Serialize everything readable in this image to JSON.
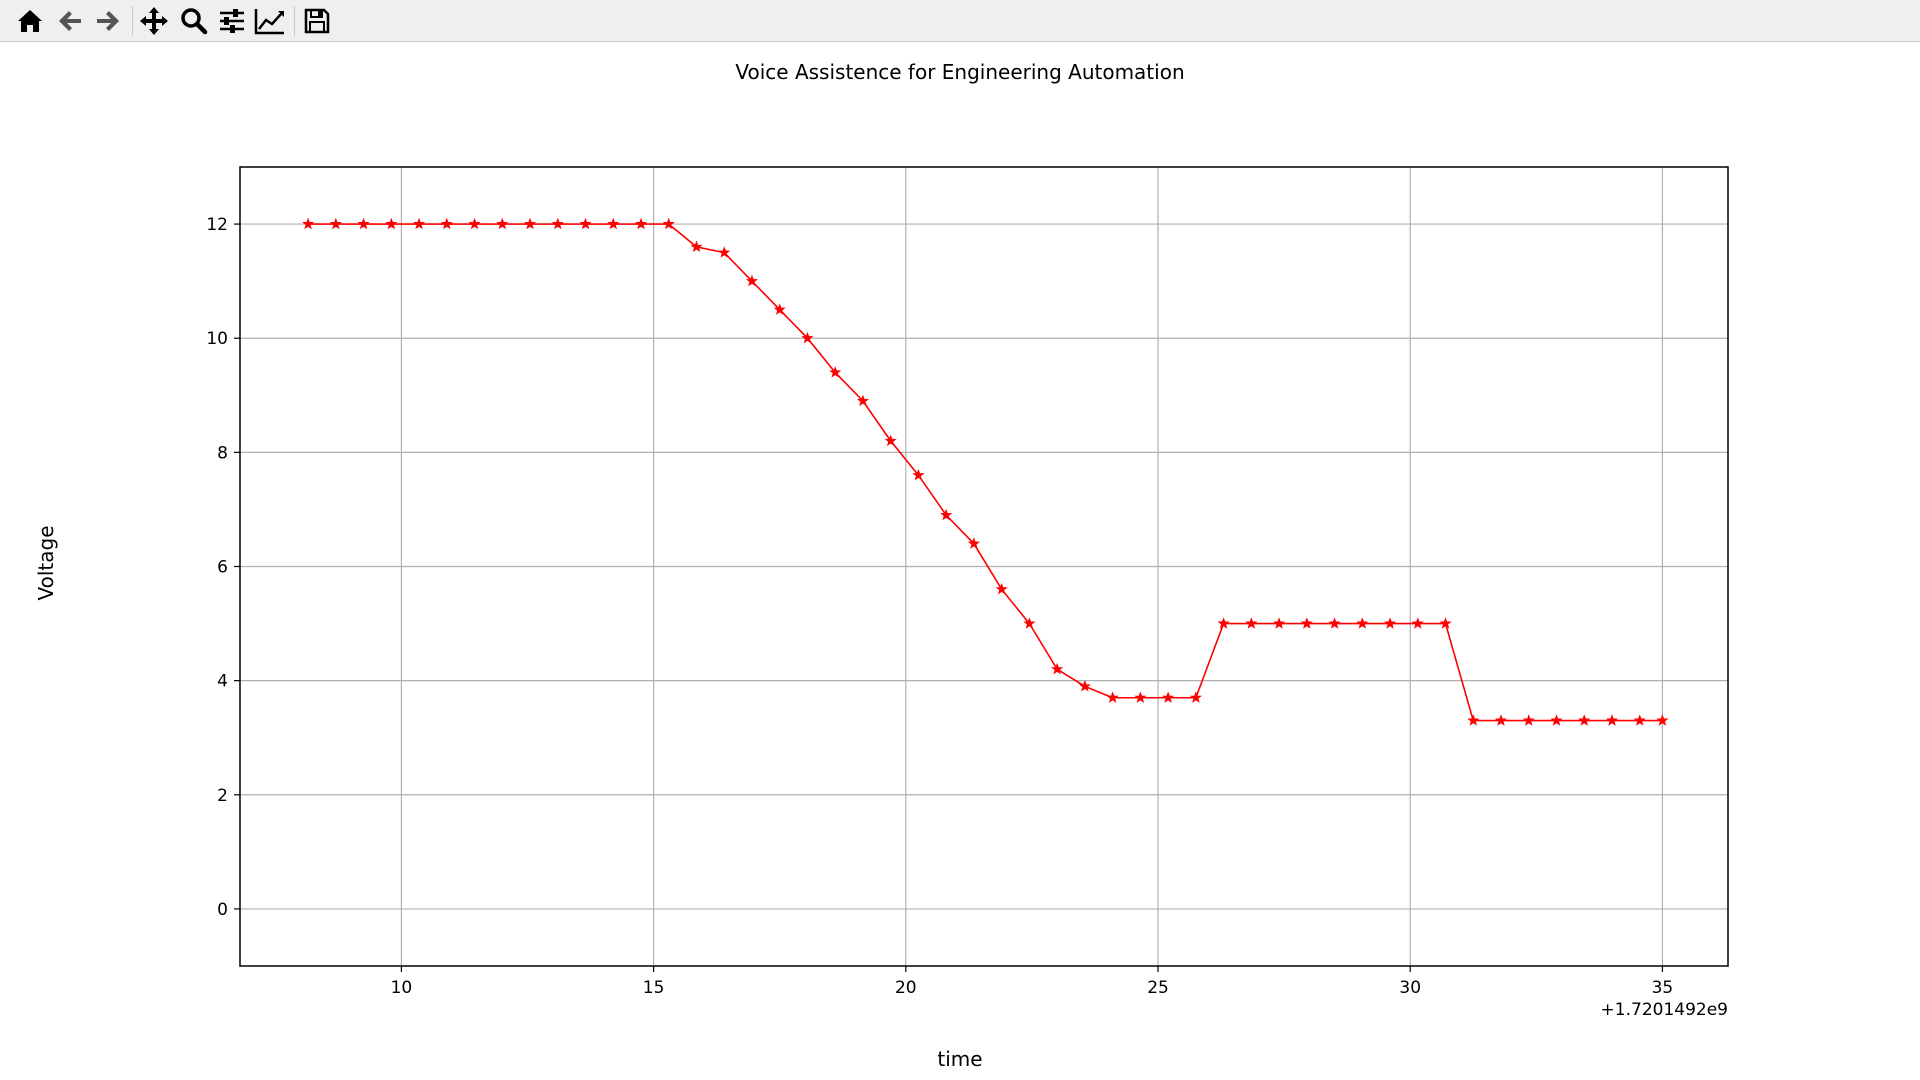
{
  "toolbar": {
    "buttons": [
      {
        "icon": "home-icon"
      },
      {
        "icon": "back-arrow-icon"
      },
      {
        "icon": "forward-arrow-icon"
      },
      {
        "icon": "pan-icon"
      },
      {
        "icon": "zoom-icon"
      },
      {
        "icon": "subplots-config-icon"
      },
      {
        "icon": "edit-axis-icon"
      },
      {
        "icon": "save-icon"
      }
    ]
  },
  "chart_data": {
    "type": "line",
    "title": "Voice Assistence for Engineering Automation",
    "xlabel": "time",
    "ylabel": "Voltage",
    "x_offset_label": "+1.7201492e9",
    "xlim": [
      6.8,
      36.3
    ],
    "ylim": [
      -1,
      13
    ],
    "xticks": [
      10,
      15,
      20,
      25,
      30,
      35
    ],
    "yticks": [
      0,
      2,
      4,
      6,
      8,
      10,
      12
    ],
    "grid": true,
    "line_color": "#ff0000",
    "marker": "star",
    "series": [
      {
        "x": [
          8.15,
          8.7,
          9.25,
          9.8,
          10.35,
          10.9,
          11.45,
          12.0,
          12.55,
          13.1,
          13.65,
          14.2,
          14.75,
          15.3,
          15.85,
          16.4,
          16.95,
          17.5,
          18.05,
          18.6,
          19.15,
          19.7,
          20.25,
          20.8,
          21.35,
          21.9,
          22.45,
          23.0,
          23.55,
          24.1,
          24.65,
          25.2,
          25.75,
          26.3,
          26.85,
          27.4,
          27.95,
          28.5,
          29.05,
          29.6,
          30.15,
          30.7,
          31.25,
          31.8,
          32.35,
          32.9,
          33.45,
          34.0,
          34.55,
          35.0
        ],
        "y": [
          12,
          12,
          12,
          12,
          12,
          12,
          12,
          12,
          12,
          12,
          12,
          12,
          12,
          12,
          11.6,
          11.5,
          11,
          10.5,
          10,
          9.4,
          8.9,
          8.2,
          7.6,
          6.9,
          6.4,
          5.6,
          5,
          4.2,
          3.9,
          3.7,
          3.7,
          3.7,
          3.7,
          5,
          5,
          5,
          5,
          5,
          5,
          5,
          5,
          5,
          3.3,
          3.3,
          3.3,
          3.3,
          3.3,
          3.3,
          3.3,
          3.3
        ]
      }
    ]
  }
}
